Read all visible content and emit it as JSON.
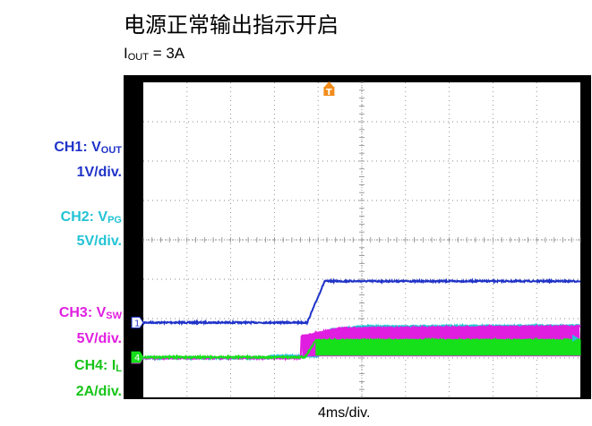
{
  "title": "电源正常输出指示开启",
  "subtitle": {
    "symbol": "I",
    "sub": "OUT",
    "rest": " = 3A"
  },
  "xlabel": "4ms/div.",
  "trigger_marker": "T",
  "channels": [
    {
      "id": "1",
      "name": "CH1: V",
      "sub": "OUT",
      "scale": "1V/div.",
      "color": "#1f33c8"
    },
    {
      "id": "2",
      "name": "CH2: V",
      "sub": "PG",
      "scale": "5V/div.",
      "color": "#22c3d4"
    },
    {
      "id": "3",
      "name": "CH3: V",
      "sub": "SW",
      "scale": "5V/div.",
      "color": "#e01ee0"
    },
    {
      "id": "4",
      "name": "CH4: I",
      "sub": "L",
      "scale": "2A/div.",
      "color": "#16e01a"
    }
  ],
  "chart_data": {
    "type": "line",
    "title": "电源正常输出指示开启",
    "xlabel": "4ms/div.",
    "x_divisions": 10,
    "y_divisions": 8,
    "grid": true,
    "x_unit": "div",
    "series": [
      {
        "name": "CH1: VOUT",
        "ground_marker": "1",
        "x": [
          0,
          3.75,
          4.15,
          10
        ],
        "values": [
          1.9,
          1.9,
          2.95,
          2.95
        ]
      },
      {
        "name": "CH2: VPG",
        "ground_marker": "2",
        "x": [
          0,
          2.85,
          2.95,
          4.0,
          4.02,
          4.3,
          5.0,
          10
        ],
        "values": [
          1.0,
          1.0,
          1.05,
          1.05,
          1.55,
          1.72,
          1.8,
          1.82
        ]
      },
      {
        "name": "CH3: VSW",
        "ground_marker": "3",
        "x": [
          0,
          3.6,
          3.62,
          4.5,
          10
        ],
        "values": [
          1.0,
          1.0,
          1.55,
          1.75,
          1.8
        ]
      },
      {
        "name": "CH4: IL",
        "ground_marker": "4",
        "x": [
          0,
          3.7,
          3.95,
          10
        ],
        "values": [
          1.02,
          1.02,
          1.45,
          1.45
        ]
      }
    ]
  }
}
